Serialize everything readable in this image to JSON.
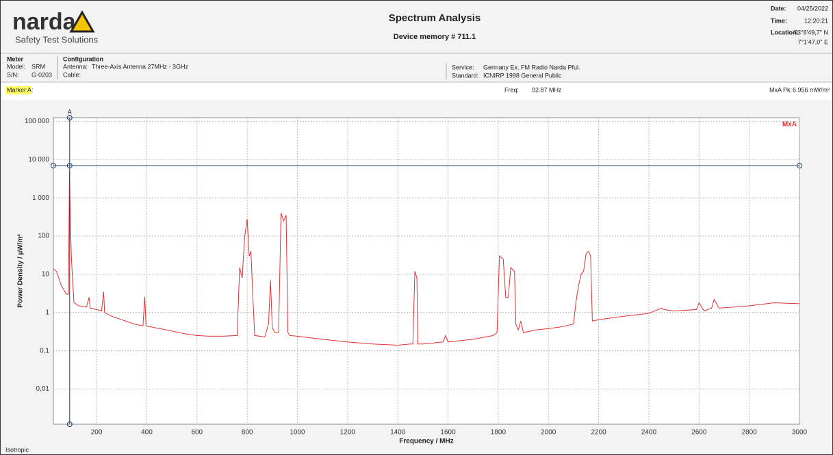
{
  "header": {
    "logo": "narda",
    "tagline": "Safety Test Solutions",
    "title": "Spectrum Analysis",
    "subtitle": "Device memory # 711.1",
    "date_label": "Date:",
    "date": "04/25/2022",
    "time_label": "Time:",
    "time": "12:20:21",
    "location_label": "Location:",
    "location_lat": "53°8'49,7\" N",
    "location_lon": "7°1'47,0\" E"
  },
  "meter": {
    "heading": "Meter",
    "model_label": "Model:",
    "model": "SRM",
    "sn_label": "S/N:",
    "sn": "G-0203"
  },
  "configuration": {
    "heading": "Configuration",
    "antenna_label": "Antenna:",
    "antenna": "Three-Axis Antenna 27MHz - 3GHz",
    "cable_label": "Cable:",
    "service_label": "Service:",
    "service": "Germany Ex. FM Radio Narda Pful.",
    "standard_label": "Standard:",
    "standard": "ICNIRP 1998 General Public"
  },
  "marker_row": {
    "marker": "Marker A:",
    "freq_label": "Freq:",
    "freq": "92.87 MHz",
    "peak_label": "MxA Pk:",
    "peak": "6.956 mW/m²"
  },
  "footer": {
    "mode": "Isotropic"
  },
  "chart_data": {
    "type": "line",
    "x_label": "Frequency / MHz",
    "y_label": "Power Density / µW/m²",
    "log_y": true,
    "grid": true,
    "xlim": [
      28,
      3000
    ],
    "xticks": [
      200,
      400,
      600,
      800,
      1000,
      1200,
      1400,
      1600,
      1800,
      2000,
      2200,
      2400,
      2600,
      2800,
      3000
    ],
    "ylim": [
      0.0012,
      125000
    ],
    "yticks": [
      {
        "value": 100000,
        "label": "100 000"
      },
      {
        "value": 10000,
        "label": "10 000"
      },
      {
        "value": 1000,
        "label": "1 000"
      },
      100,
      10,
      1,
      {
        "value": 0.1,
        "label": "0,1"
      },
      {
        "value": 0.01,
        "label": "0,01"
      }
    ],
    "marker": {
      "label": "A",
      "x": 92.87,
      "y": 6956
    },
    "x": [
      28,
      40,
      60,
      80,
      88,
      92,
      96,
      100,
      104,
      110,
      130,
      160,
      170,
      175,
      200,
      220,
      228,
      232,
      260,
      300,
      350,
      385,
      392,
      397,
      450,
      500,
      550,
      600,
      650,
      700,
      760,
      770,
      780,
      790,
      800,
      808,
      815,
      822,
      830,
      870,
      885,
      893,
      900,
      910,
      925,
      935,
      945,
      955,
      962,
      970,
      1000,
      1100,
      1200,
      1300,
      1400,
      1450,
      1460,
      1468,
      1476,
      1480,
      1500,
      1580,
      1590,
      1600,
      1700,
      1780,
      1795,
      1805,
      1820,
      1830,
      1840,
      1850,
      1865,
      1870,
      1880,
      1890,
      1900,
      1950,
      2000,
      2050,
      2100,
      2110,
      2120,
      2130,
      2140,
      2150,
      2160,
      2168,
      2175,
      2200,
      2300,
      2400,
      2450,
      2460,
      2500,
      2590,
      2600,
      2620,
      2650,
      2660,
      2680,
      2800,
      2900,
      3000
    ],
    "series": [
      {
        "name": "MxA",
        "color": "#e03030",
        "values": [
          14,
          12,
          5,
          3,
          3,
          5000,
          200,
          25,
          8,
          1.8,
          1.5,
          1.4,
          2.5,
          1.3,
          1.2,
          1.1,
          3.5,
          1.0,
          0.8,
          0.65,
          0.5,
          0.45,
          2.6,
          0.45,
          0.38,
          0.33,
          0.28,
          0.25,
          0.24,
          0.24,
          0.25,
          15,
          8,
          100,
          280,
          30,
          40,
          3,
          0.25,
          0.23,
          0.5,
          7,
          0.4,
          0.3,
          0.3,
          400,
          250,
          350,
          0.3,
          0.25,
          0.24,
          0.2,
          0.17,
          0.15,
          0.14,
          0.15,
          0.15,
          12,
          8,
          0.15,
          0.15,
          0.17,
          0.25,
          0.17,
          0.2,
          0.25,
          0.3,
          30,
          25,
          2.5,
          2.5,
          15,
          12,
          0.5,
          0.35,
          0.6,
          0.3,
          0.35,
          0.38,
          0.42,
          0.5,
          2,
          5,
          10,
          12,
          35,
          40,
          30,
          0.6,
          0.65,
          0.8,
          0.95,
          1.3,
          1.2,
          1.1,
          1.2,
          1.8,
          1.1,
          1.3,
          2.2,
          1.3,
          1.5,
          1.8,
          1.7
        ]
      }
    ]
  }
}
